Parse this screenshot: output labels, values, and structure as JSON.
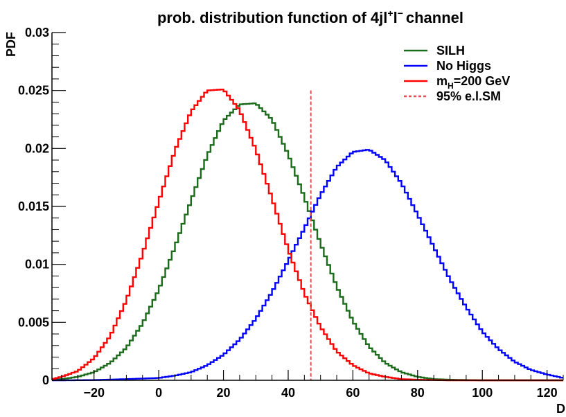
{
  "chart_data": {
    "type": "line",
    "title": "prob. distribution function of  4jl",
    "title_sup1": "+",
    "title_mid": "l",
    "title_sup2": "−",
    "title_end": "channel",
    "xlabel": "D",
    "ylabel": "PDF",
    "xlim": [
      -33,
      125
    ],
    "ylim": [
      0,
      0.03
    ],
    "x_ticks": [
      -20,
      0,
      20,
      40,
      60,
      80,
      100,
      120
    ],
    "x_tick_labels": [
      "−20",
      "0",
      "20",
      "40",
      "60",
      "80",
      "100",
      "120"
    ],
    "y_ticks": [
      0,
      0.005,
      0.01,
      0.015,
      0.02,
      0.025,
      0.03
    ],
    "y_tick_labels": [
      "0",
      "0.005",
      "0.01",
      "0.015",
      "0.02",
      "0.025",
      "0.03"
    ],
    "grid": false,
    "legend_position": "top-right",
    "series": [
      {
        "name": "SILH",
        "color": "#1a6b1a",
        "x": [
          -30,
          -25,
          -20,
          -15,
          -10,
          -5,
          0,
          5,
          10,
          15,
          20,
          25,
          30,
          35,
          40,
          45,
          50,
          55,
          60,
          65,
          70,
          75,
          80,
          85,
          90,
          95,
          100
        ],
        "values": [
          0.0001,
          0.0003,
          0.0007,
          0.0015,
          0.0028,
          0.0049,
          0.0078,
          0.0115,
          0.0155,
          0.0194,
          0.0224,
          0.0238,
          0.0239,
          0.0225,
          0.0195,
          0.0158,
          0.0118,
          0.0081,
          0.0051,
          0.0029,
          0.0015,
          0.0007,
          0.0003,
          0.0001,
          5e-05,
          2e-05,
          0.0
        ]
      },
      {
        "name": "No Higgs",
        "color": "#0000ff",
        "x": [
          -30,
          -20,
          -10,
          0,
          5,
          10,
          15,
          20,
          25,
          30,
          35,
          40,
          45,
          50,
          55,
          60,
          65,
          70,
          75,
          80,
          85,
          90,
          95,
          100,
          105,
          110,
          115,
          120,
          125
        ],
        "values": [
          0.0,
          2e-05,
          0.0001,
          0.0002,
          0.0004,
          0.0007,
          0.0013,
          0.0022,
          0.0035,
          0.0053,
          0.0076,
          0.0103,
          0.0131,
          0.016,
          0.0184,
          0.0197,
          0.0199,
          0.019,
          0.017,
          0.0143,
          0.0115,
          0.0087,
          0.0063,
          0.0042,
          0.0027,
          0.0016,
          0.0009,
          0.0005,
          0.0002
        ]
      },
      {
        "name": "m_H=200 GeV",
        "color": "#ff0000",
        "x": [
          -33,
          -30,
          -25,
          -20,
          -15,
          -10,
          -5,
          0,
          5,
          10,
          15,
          20,
          25,
          30,
          35,
          40,
          45,
          50,
          55,
          60,
          65,
          70,
          75,
          80,
          85,
          90,
          100,
          110
        ],
        "values": [
          0.0001,
          0.0003,
          0.0008,
          0.0019,
          0.0038,
          0.0069,
          0.0109,
          0.0154,
          0.0198,
          0.0232,
          0.025,
          0.0251,
          0.0233,
          0.0199,
          0.0157,
          0.0113,
          0.0075,
          0.0046,
          0.0025,
          0.0013,
          0.0006,
          0.0003,
          0.0001,
          5e-05,
          2e-05,
          0.0,
          0.0,
          0.0
        ]
      }
    ],
    "vline": {
      "name": "95% e.l.SM",
      "x": 47,
      "y_top": 0.025,
      "color": "#e05050",
      "dashed": true
    },
    "legend": [
      {
        "label": "SILH",
        "color": "#1a6b1a",
        "style": "solid"
      },
      {
        "label": "No Higgs",
        "color": "#0000ff",
        "style": "solid"
      },
      {
        "label_main": "m",
        "label_sub": "H",
        "label_rest": "=200 GeV",
        "color": "#ff0000",
        "style": "solid"
      },
      {
        "label": "95% e.l.SM",
        "color": "#e05050",
        "style": "dashed"
      }
    ]
  }
}
